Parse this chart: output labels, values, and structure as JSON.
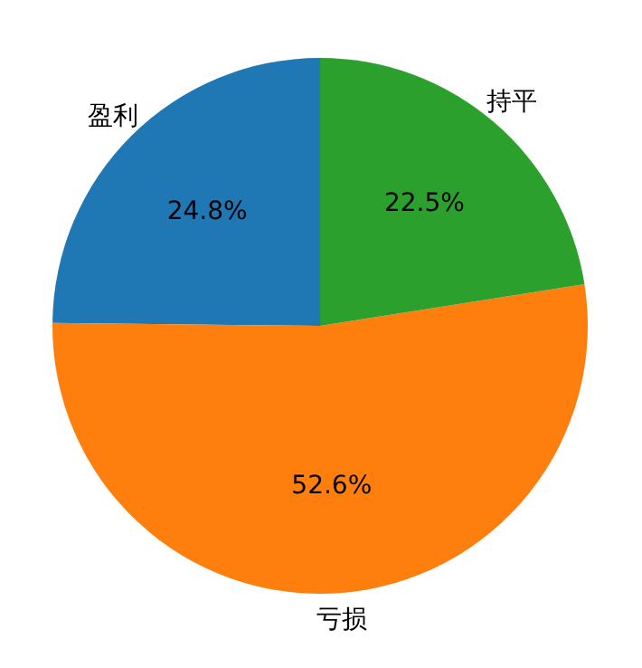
{
  "chart_data": {
    "type": "pie",
    "categories": [
      "盈利",
      "亏损",
      "持平"
    ],
    "values": [
      24.8,
      52.6,
      22.5
    ],
    "colors": [
      "#1f77b4",
      "#ff7f0e",
      "#2ca02c"
    ],
    "value_labels": [
      "24.8%",
      "52.6%",
      "22.5%"
    ]
  }
}
